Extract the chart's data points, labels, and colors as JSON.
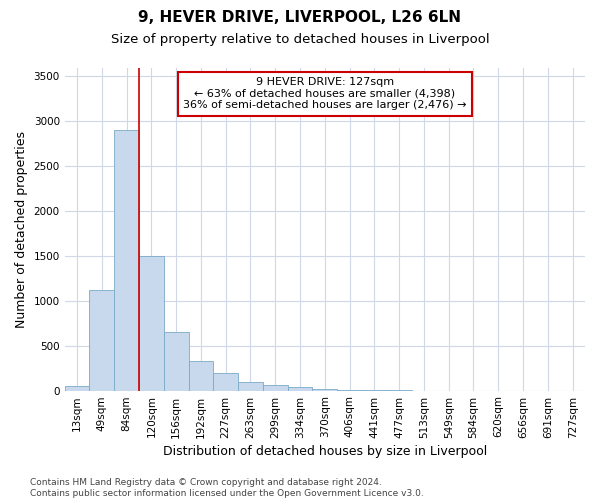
{
  "title": "9, HEVER DRIVE, LIVERPOOL, L26 6LN",
  "subtitle": "Size of property relative to detached houses in Liverpool",
  "xlabel": "Distribution of detached houses by size in Liverpool",
  "ylabel": "Number of detached properties",
  "categories": [
    "13sqm",
    "49sqm",
    "84sqm",
    "120sqm",
    "156sqm",
    "192sqm",
    "227sqm",
    "263sqm",
    "299sqm",
    "334sqm",
    "370sqm",
    "406sqm",
    "441sqm",
    "477sqm",
    "513sqm",
    "549sqm",
    "584sqm",
    "620sqm",
    "656sqm",
    "691sqm",
    "727sqm"
  ],
  "values": [
    50,
    1120,
    2900,
    1500,
    650,
    330,
    200,
    100,
    65,
    40,
    15,
    5,
    5,
    2,
    0,
    0,
    0,
    0,
    0,
    0,
    0
  ],
  "bar_color": "#c8d9ee",
  "bar_edge_color": "#7aaac8",
  "marker_line_color": "#cc0000",
  "marker_bin_index": 3,
  "annotation_text": "9 HEVER DRIVE: 127sqm\n← 63% of detached houses are smaller (4,398)\n36% of semi-detached houses are larger (2,476) →",
  "annotation_box_color": "white",
  "annotation_box_edge_color": "#cc0000",
  "ylim": [
    0,
    3600
  ],
  "yticks": [
    0,
    500,
    1000,
    1500,
    2000,
    2500,
    3000,
    3500
  ],
  "footer_text": "Contains HM Land Registry data © Crown copyright and database right 2024.\nContains public sector information licensed under the Open Government Licence v3.0.",
  "background_color": "#ffffff",
  "plot_background_color": "#ffffff",
  "grid_color": "#d0d8e8",
  "title_fontsize": 11,
  "subtitle_fontsize": 9.5,
  "axis_label_fontsize": 9,
  "tick_fontsize": 7.5,
  "footer_fontsize": 6.5
}
